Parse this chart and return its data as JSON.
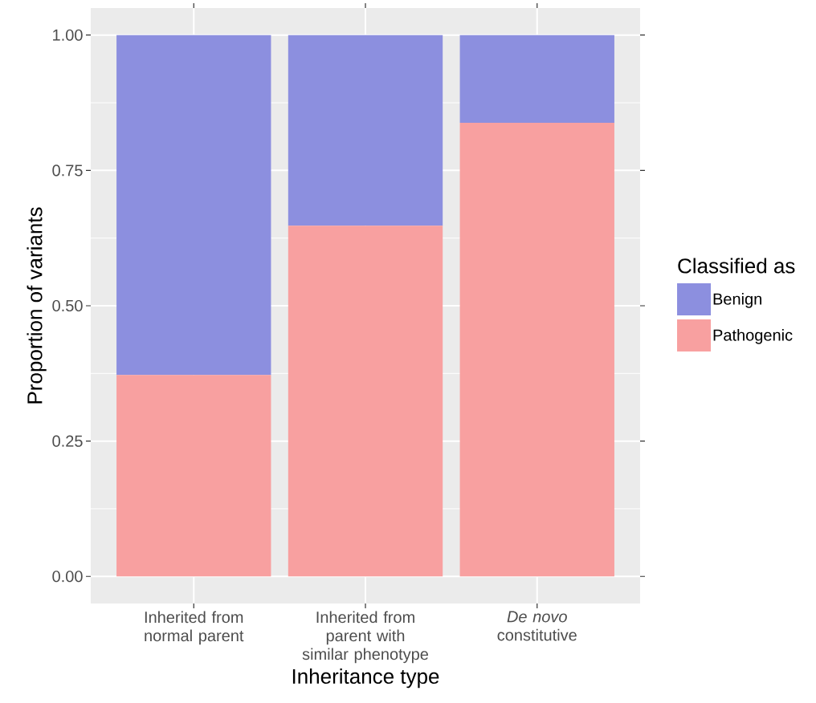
{
  "chart_data": {
    "type": "bar",
    "stacked": true,
    "xlabel": "Inheritance type",
    "ylabel": "Proportion of variants",
    "legend_title": "Classified as",
    "legend": "right",
    "grid": true,
    "categories": [
      "Inherited from normal parent",
      "Inherited from parent with similar phenotype",
      "*De novo* constitutive"
    ],
    "ylim": [
      -0.05,
      1.05
    ],
    "yticks": [
      {
        "value": 0,
        "label": "0.00"
      },
      {
        "value": 0.25,
        "label": "0.25"
      },
      {
        "value": 0.5,
        "label": "0.50"
      },
      {
        "value": 0.75,
        "label": "0.75"
      },
      {
        "value": 1,
        "label": "1.00"
      }
    ],
    "series": [
      {
        "name": "Pathogenic",
        "color": "#f8a0a0",
        "values": [
          0.372,
          0.648,
          0.838
        ]
      },
      {
        "name": "Benign",
        "color": "#8c8fdf",
        "values": [
          0.628,
          0.352,
          0.162
        ]
      }
    ]
  }
}
